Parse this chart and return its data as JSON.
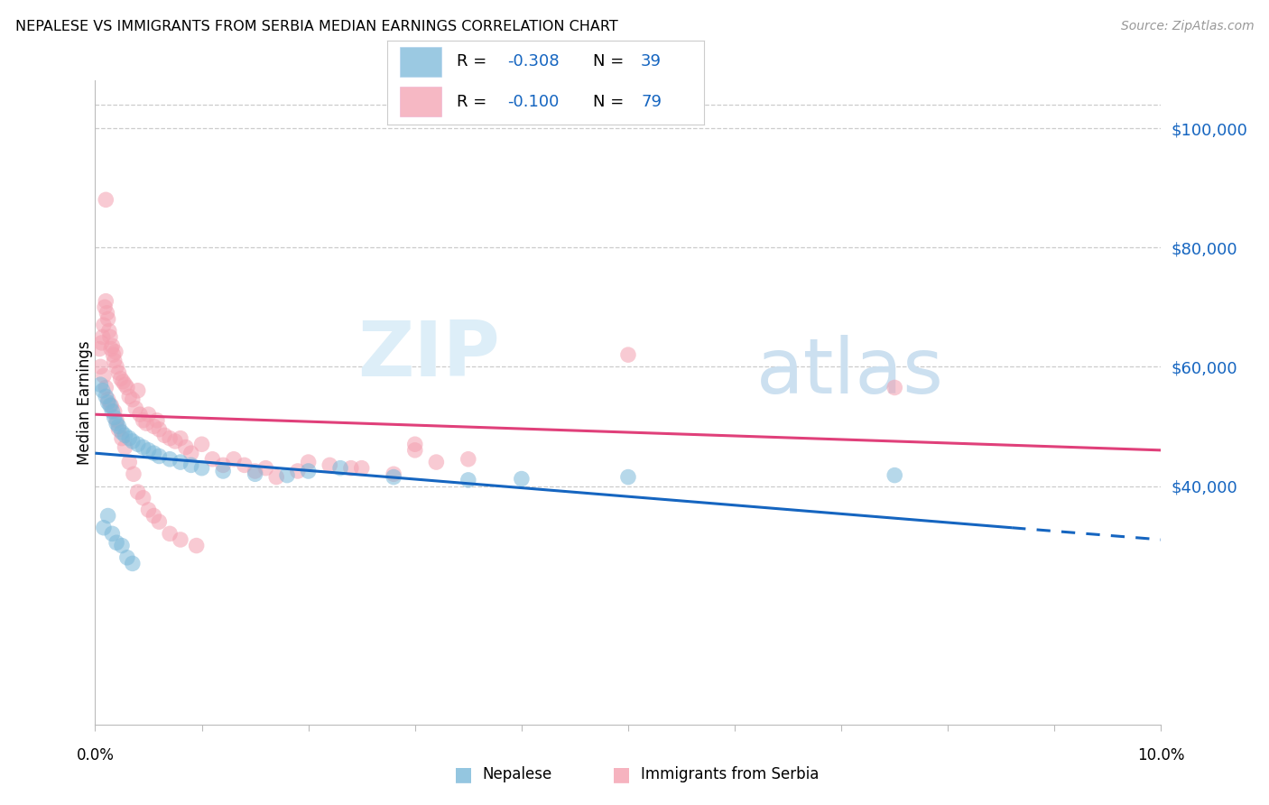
{
  "title": "NEPALESE VS IMMIGRANTS FROM SERBIA MEDIAN EARNINGS CORRELATION CHART",
  "source": "Source: ZipAtlas.com",
  "ylabel": "Median Earnings",
  "y_tick_labels": [
    "$40,000",
    "$60,000",
    "$80,000",
    "$100,000"
  ],
  "y_tick_values": [
    40000,
    60000,
    80000,
    100000
  ],
  "x_min": 0.0,
  "x_max": 10.0,
  "y_min": 0,
  "y_max": 108000,
  "blue_color": "#7ab8d9",
  "pink_color": "#f4a0b0",
  "blue_line_color": "#1565c0",
  "pink_line_color": "#e0407a",
  "legend_color": "#1565c0",
  "grid_color": "#cccccc",
  "r_blue": "-0.308",
  "n_blue": "39",
  "r_pink": "-0.100",
  "n_pink": "79",
  "blue_line": [
    0.0,
    45500,
    8.6,
    33000
  ],
  "blue_dash": [
    8.6,
    33000,
    10.0,
    31000
  ],
  "pink_line": [
    0.0,
    52000,
    10.0,
    46000
  ],
  "blue_points_x": [
    0.05,
    0.07,
    0.1,
    0.12,
    0.14,
    0.16,
    0.18,
    0.2,
    0.22,
    0.25,
    0.28,
    0.32,
    0.35,
    0.4,
    0.45,
    0.5,
    0.55,
    0.6,
    0.7,
    0.8,
    0.9,
    1.0,
    1.2,
    1.5,
    1.8,
    2.0,
    2.3,
    2.8,
    3.5,
    4.0,
    5.0,
    7.5,
    0.08,
    0.12,
    0.16,
    0.2,
    0.25,
    0.3,
    0.35
  ],
  "blue_points_y": [
    57000,
    56000,
    55000,
    54000,
    53500,
    52500,
    51500,
    50500,
    50000,
    49000,
    48500,
    48000,
    47500,
    47000,
    46500,
    46000,
    45500,
    45000,
    44500,
    44000,
    43500,
    43000,
    42500,
    42000,
    41800,
    42500,
    43000,
    41500,
    41000,
    41200,
    41500,
    41800,
    33000,
    35000,
    32000,
    30500,
    30000,
    28000,
    27000
  ],
  "pink_points_x": [
    0.04,
    0.06,
    0.07,
    0.08,
    0.09,
    0.1,
    0.11,
    0.12,
    0.13,
    0.14,
    0.15,
    0.16,
    0.17,
    0.18,
    0.19,
    0.2,
    0.22,
    0.24,
    0.26,
    0.28,
    0.3,
    0.32,
    0.35,
    0.38,
    0.4,
    0.42,
    0.45,
    0.48,
    0.5,
    0.55,
    0.58,
    0.6,
    0.65,
    0.7,
    0.75,
    0.8,
    0.85,
    0.9,
    1.0,
    1.1,
    1.2,
    1.3,
    1.4,
    1.5,
    1.6,
    1.7,
    1.9,
    2.0,
    2.2,
    2.5,
    3.0,
    3.2,
    3.5,
    0.05,
    0.08,
    0.1,
    0.12,
    0.15,
    0.18,
    0.2,
    0.22,
    0.25,
    0.28,
    0.32,
    0.36,
    0.4,
    0.45,
    0.5,
    0.55,
    0.6,
    0.7,
    0.8,
    0.95,
    0.1,
    5.0,
    7.5,
    3.0,
    2.8,
    2.4
  ],
  "pink_points_y": [
    63000,
    64000,
    65000,
    67000,
    70000,
    71000,
    69000,
    68000,
    66000,
    65000,
    63000,
    63500,
    62000,
    61000,
    62500,
    60000,
    59000,
    58000,
    57500,
    57000,
    56500,
    55000,
    54500,
    53000,
    56000,
    52000,
    51000,
    50500,
    52000,
    50000,
    51000,
    49500,
    48500,
    48000,
    47500,
    48000,
    46500,
    45500,
    47000,
    44500,
    43500,
    44500,
    43500,
    42500,
    43000,
    41500,
    42500,
    44000,
    43500,
    43000,
    47000,
    44000,
    44500,
    60000,
    58500,
    56500,
    54500,
    53500,
    52500,
    51000,
    49500,
    48000,
    46500,
    44000,
    42000,
    39000,
    38000,
    36000,
    35000,
    34000,
    32000,
    31000,
    30000,
    88000,
    62000,
    56500,
    46000,
    42000,
    43000
  ]
}
